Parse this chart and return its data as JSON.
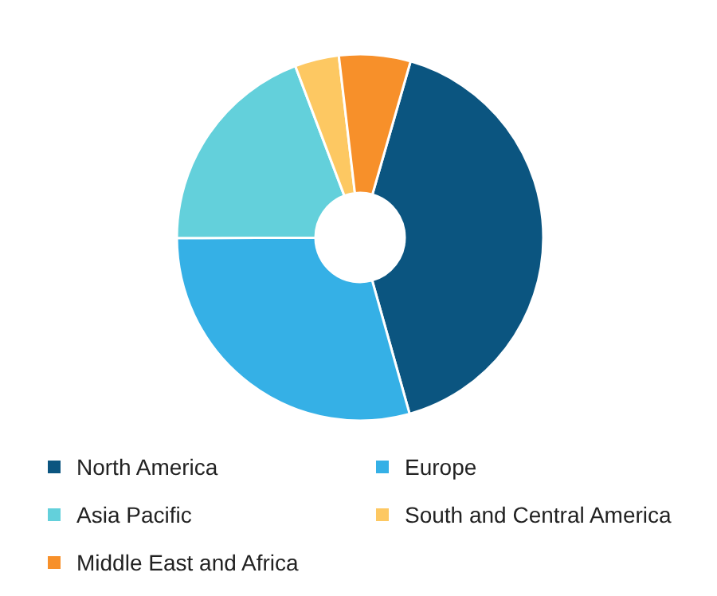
{
  "chart_data": {
    "type": "donut",
    "categories": [
      "North America",
      "Europe",
      "Asia Pacific",
      "South and Central America",
      "Middle East and Africa"
    ],
    "values": [
      41.2,
      29.3,
      19.3,
      3.9,
      6.3
    ],
    "colors": [
      "#0b5580",
      "#35b0e6",
      "#63d0db",
      "#fdc862",
      "#f7902a"
    ],
    "legend": "bottom"
  }
}
